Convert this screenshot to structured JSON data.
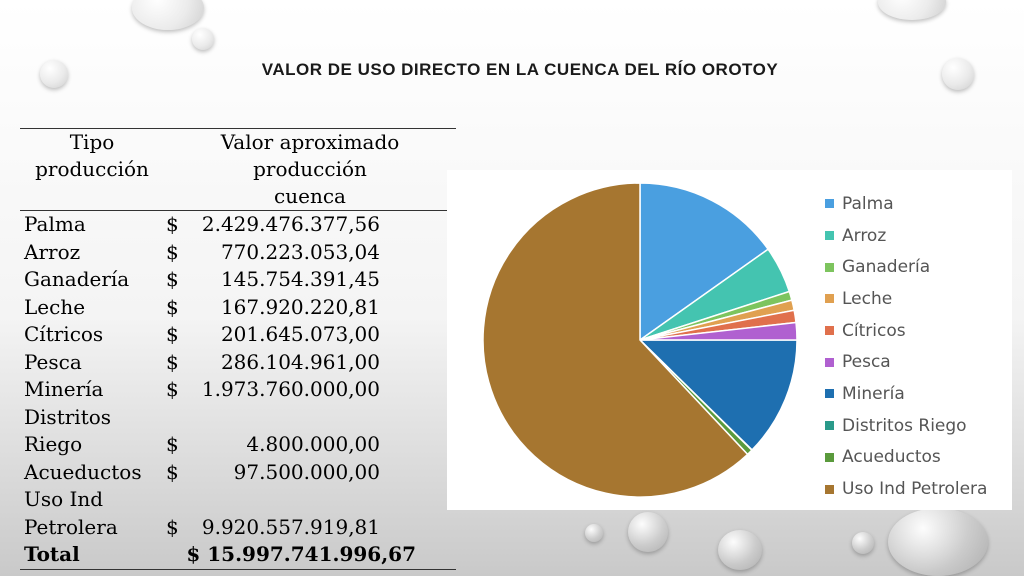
{
  "title": "VALOR DE USO DIRECTO EN LA CUENCA DEL RÍO OROTOY",
  "table": {
    "header_type_line1": "Tipo",
    "header_type_line2": "producción",
    "header_value_line1": "Valor aproximado producción",
    "header_value_line2": "cuenca",
    "currency": "$",
    "rows": [
      {
        "name": "Palma",
        "value": "2.429.476.377,56"
      },
      {
        "name": "Arroz",
        "value": "770.223.053,04"
      },
      {
        "name": "Ganadería",
        "value": "145.754.391,45"
      },
      {
        "name": "Leche",
        "value": "167.920.220,81"
      },
      {
        "name": "Cítricos",
        "value": "201.645.073,00"
      },
      {
        "name": "Pesca",
        "value": "286.104.961,00"
      },
      {
        "name": "Minería",
        "value": "1.973.760.000,00"
      },
      {
        "name_line1": "Distritos",
        "name_line2": "Riego",
        "value": "4.800.000,00"
      },
      {
        "name": "Acueductos",
        "value": "97.500.000,00"
      },
      {
        "name_line1": "Uso Ind",
        "name_line2": "Petrolera",
        "value": "9.920.557.919,81"
      }
    ],
    "total_label": "Total",
    "total_value": "$  15.997.741.996,67"
  },
  "chart_data": {
    "type": "pie",
    "categories": [
      "Palma",
      "Arroz",
      "Ganadería",
      "Leche",
      "Cítricos",
      "Pesca",
      "Minería",
      "Distritos Riego",
      "Acueductos",
      "Uso Ind Petrolera"
    ],
    "values": [
      2429476377.56,
      770223053.04,
      145754391.45,
      167920220.81,
      201645073.0,
      286104961.0,
      1973760000.0,
      4800000.0,
      97500000.0,
      9920557919.81
    ],
    "colors": [
      "#4a9fe0",
      "#44c4b0",
      "#7dc45e",
      "#e0a050",
      "#e0704c",
      "#b060d0",
      "#1e6fb0",
      "#2a9a8a",
      "#5a9a3c",
      "#a67630"
    ],
    "legend_position": "right"
  }
}
